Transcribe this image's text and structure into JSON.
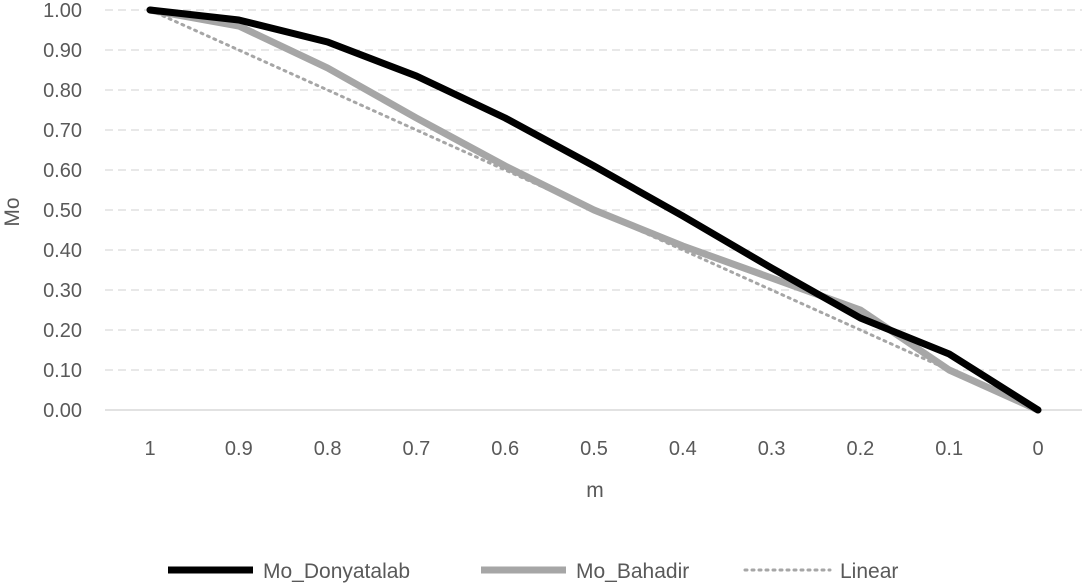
{
  "chart_data": {
    "type": "line",
    "title": "",
    "xlabel": "m",
    "ylabel": "Mo",
    "categories": [
      "1",
      "0.9",
      "0.8",
      "0.7",
      "0.6",
      "0.5",
      "0.4",
      "0.3",
      "0.2",
      "0.1",
      "0"
    ],
    "x": [
      1,
      0.9,
      0.8,
      0.7,
      0.6,
      0.5,
      0.4,
      0.3,
      0.2,
      0.1,
      0
    ],
    "ylim": [
      0,
      1
    ],
    "yticks": [
      "0.00",
      "0.10",
      "0.20",
      "0.30",
      "0.40",
      "0.50",
      "0.60",
      "0.70",
      "0.80",
      "0.90",
      "1.00"
    ],
    "grid": "horizontal dashed",
    "legend_position": "bottom",
    "series": [
      {
        "name": "Mo_Donyatalab",
        "color": "#000000",
        "style": "solid-thick",
        "values": [
          1.0,
          0.975,
          0.92,
          0.835,
          0.73,
          0.61,
          0.485,
          0.355,
          0.23,
          0.14,
          0.0
        ]
      },
      {
        "name": "Mo_Bahadir",
        "color": "#a6a6a6",
        "style": "solid-thick",
        "values": [
          1.0,
          0.96,
          0.855,
          0.73,
          0.61,
          0.5,
          0.41,
          0.33,
          0.25,
          0.1,
          0.0
        ]
      },
      {
        "name": "Linear",
        "color": "#a6a6a6",
        "style": "dotted",
        "values": [
          1.0,
          0.9,
          0.8,
          0.7,
          0.6,
          0.5,
          0.4,
          0.3,
          0.2,
          0.1,
          0.0
        ]
      }
    ]
  }
}
